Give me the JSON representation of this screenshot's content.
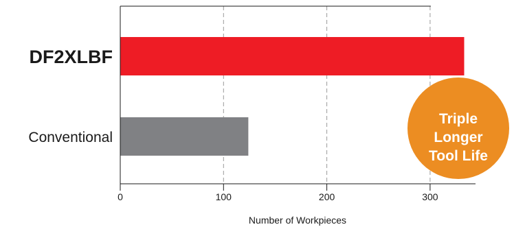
{
  "chart_data": {
    "type": "bar",
    "orientation": "horizontal",
    "title": "",
    "categories": [
      "DF2XLBF",
      "Conventional"
    ],
    "values": [
      333,
      124
    ],
    "colors": [
      "#ee1c25",
      "#808184"
    ],
    "xlabel": "Number of Workpieces",
    "ylabel": "",
    "xlim": [
      0,
      345
    ],
    "xticks": [
      0,
      100,
      200,
      300
    ],
    "grid": "vertical dashed",
    "legend": "none",
    "annotation": {
      "lines": [
        "Triple",
        "Longer",
        "Tool Life"
      ],
      "color": "#ec8d22"
    }
  }
}
